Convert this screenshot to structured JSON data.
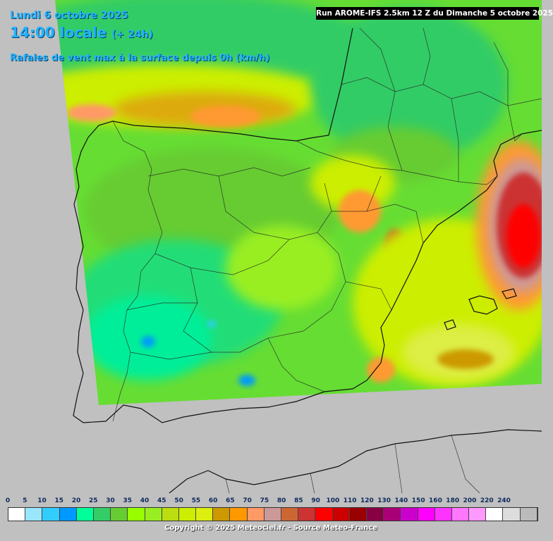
{
  "header": {
    "date": "Lundi 6 octobre 2025",
    "hour": "14:00 locale",
    "offset": "(+ 24h)",
    "parameter": "Rafales de vent max à la surface depuis 0h (km/h)",
    "run": "Run AROME-IFS 2.5km 12 Z du Dimanche 5 octobre 2025"
  },
  "legend": {
    "labels": [
      "0",
      "5",
      "10",
      "15",
      "20",
      "25",
      "30",
      "35",
      "40",
      "45",
      "50",
      "55",
      "60",
      "65",
      "70",
      "75",
      "80",
      "85",
      "90",
      "100",
      "110",
      "120",
      "130",
      "140",
      "150",
      "160",
      "180",
      "200",
      "220",
      "240"
    ],
    "colors": [
      "#ffffff",
      "#99e6ff",
      "#33ccff",
      "#0099ff",
      "#00ff99",
      "#33cc66",
      "#66cc33",
      "#99ff00",
      "#99ee22",
      "#bbdd11",
      "#ccee00",
      "#ddee11",
      "#cc9900",
      "#ff9900",
      "#ff9966",
      "#cc9999",
      "#cc6633",
      "#cc3333",
      "#ff0000",
      "#cc0000",
      "#990000",
      "#880044",
      "#aa0077",
      "#cc00cc",
      "#ff00ff",
      "#ff33ff",
      "#ff77ff",
      "#ff99ff",
      "#ffffff",
      "#dddddd",
      "#bbbbbb"
    ]
  },
  "footer": {
    "copyright": "Copyright © 2025 Meteociel.fr - Source Meteo-France"
  }
}
